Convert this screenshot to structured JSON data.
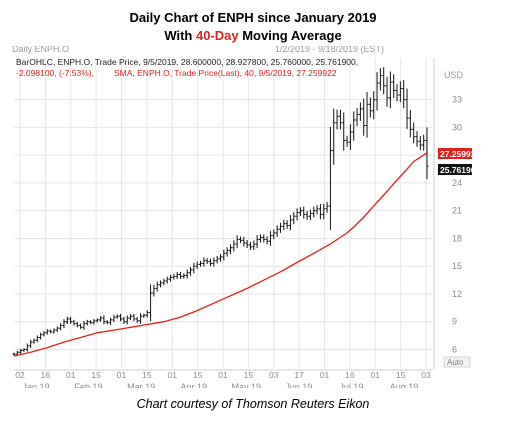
{
  "title": "Daily Chart of ENPH since January 2019",
  "subtitle": {
    "prefix": "With ",
    "highlight": "40-Day",
    "suffix": " Moving Average"
  },
  "credit": "Chart courtesy of Thomson Reuters Eikon",
  "colors": {
    "price": "#111111",
    "sma": "#e0201a",
    "grid": "#e6e6e6",
    "axis_text": "#8a8a8a",
    "highlight": "#d9231f"
  },
  "chart_data": {
    "type": "line",
    "instrument_label": "Daily ENPH.O",
    "date_range": "1/2/2019 - 9/18/2019 (EST)",
    "currency": "USD",
    "legend_line1": "BarOHLC, ENPH.O, Trade Price, 9/5/2019, 28.600000, 28.927800, 25.760000, 25.761900,",
    "legend_line2_red": "-2.098100, (-7.53%),",
    "legend_line2_sma": "SMA, ENPH.O, Trade Price(Last), 40, 9/5/2019, 27.259922",
    "price_last_label": "25.761900",
    "sma_last_label": "27.259922",
    "auto_label": "Auto",
    "ylim": [
      4,
      37.5
    ],
    "y_ticks": [
      6,
      9,
      12,
      15,
      18,
      21,
      24,
      27,
      30,
      33
    ],
    "x_day_ticks": [
      "02",
      "16",
      "01",
      "15",
      "01",
      "15",
      "01",
      "15",
      "01",
      "15",
      "03",
      "17",
      "01",
      "16",
      "01",
      "15",
      "03"
    ],
    "x_month_labels": [
      "Jan 19",
      "Feb 19",
      "Mar 19",
      "Apr 19",
      "May 19",
      "Jun 19",
      "Jul 19",
      "Aug 19"
    ],
    "x_range_days": [
      0,
      251
    ],
    "series": [
      {
        "kind": "ohlc-close",
        "x_days": [
          0,
          2,
          4,
          6,
          8,
          10,
          12,
          14,
          16,
          18,
          20,
          22,
          24,
          26,
          28,
          30,
          32,
          34,
          36,
          38,
          40,
          42,
          44,
          46,
          48,
          50,
          52,
          54,
          56,
          58,
          60,
          62,
          64,
          66,
          68,
          70,
          72,
          74,
          76,
          78,
          80,
          82,
          84,
          86,
          88,
          90,
          92,
          94,
          96,
          98,
          100,
          102,
          104,
          106,
          108,
          110,
          112,
          114,
          116,
          118,
          120,
          122,
          124,
          126,
          128,
          130,
          132,
          134,
          136,
          138,
          140,
          142,
          144,
          146,
          148,
          150,
          152,
          154,
          156,
          158,
          160,
          162,
          164,
          166,
          168,
          170,
          172,
          174,
          176,
          178,
          180,
          182,
          184,
          186,
          188,
          190,
          192,
          194,
          196,
          198,
          200,
          202,
          204,
          206,
          208,
          210,
          212,
          214,
          216,
          218,
          220,
          222,
          224,
          226,
          228,
          230,
          232,
          234,
          236,
          238,
          240,
          242,
          244,
          246,
          248
        ],
        "close": [
          5.5,
          5.7,
          5.9,
          6.0,
          6.4,
          6.8,
          7.0,
          7.3,
          7.6,
          7.8,
          8.0,
          7.9,
          8.1,
          8.3,
          8.6,
          9.0,
          9.3,
          9.0,
          8.8,
          8.6,
          8.4,
          8.8,
          9.0,
          8.9,
          9.1,
          9.2,
          9.4,
          9.0,
          8.9,
          9.2,
          9.5,
          9.6,
          9.3,
          9.0,
          9.4,
          9.6,
          9.3,
          9.1,
          9.6,
          9.7,
          10.0,
          12.1,
          12.6,
          13.0,
          13.2,
          13.4,
          13.6,
          13.8,
          13.9,
          14.1,
          13.9,
          14.0,
          14.3,
          14.6,
          15.0,
          15.2,
          15.3,
          15.6,
          15.5,
          15.3,
          15.6,
          15.8,
          16.0,
          16.4,
          16.7,
          17.0,
          17.4,
          17.9,
          17.8,
          17.5,
          17.3,
          17.1,
          17.4,
          17.9,
          18.1,
          17.9,
          17.7,
          18.3,
          18.6,
          19.0,
          19.3,
          19.6,
          19.4,
          20.0,
          20.4,
          20.8,
          21.0,
          20.6,
          20.4,
          20.7,
          21.0,
          21.2,
          20.6,
          21.2,
          21.5,
          27.5,
          30.5,
          31.2,
          30.5,
          28.6,
          28.4,
          29.5,
          30.8,
          31.4,
          32.0,
          30.2,
          32.5,
          31.8,
          33.0,
          34.8,
          35.6,
          34.5,
          33.2,
          34.9,
          34.0,
          33.5,
          34.2,
          33.0,
          31.0,
          29.8,
          29.0,
          28.5,
          28.1,
          28.6,
          25.8
        ]
      },
      {
        "kind": "sma40",
        "x_days": [
          0,
          10,
          20,
          30,
          40,
          50,
          60,
          70,
          80,
          90,
          100,
          110,
          120,
          130,
          140,
          150,
          160,
          170,
          180,
          190,
          200,
          205,
          210,
          215,
          220,
          225,
          230,
          235,
          240,
          245,
          248
        ],
        "values": [
          5.3,
          5.7,
          6.2,
          6.8,
          7.3,
          7.8,
          8.1,
          8.4,
          8.7,
          9.0,
          9.5,
          10.2,
          11.0,
          11.8,
          12.6,
          13.5,
          14.4,
          15.4,
          16.4,
          17.4,
          18.6,
          19.4,
          20.3,
          21.3,
          22.3,
          23.3,
          24.3,
          25.3,
          26.3,
          26.9,
          27.26
        ]
      }
    ]
  }
}
